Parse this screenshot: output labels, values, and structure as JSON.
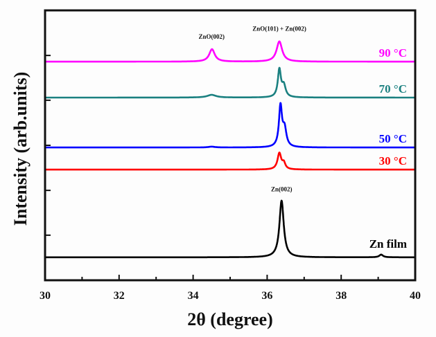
{
  "chart_data": {
    "type": "line",
    "title": "",
    "xlabel": "2θ (degree)",
    "ylabel": "Intensity (arb.units)",
    "xlim": [
      30,
      40
    ],
    "ylim": [
      0,
      100
    ],
    "xticks": [
      30,
      32,
      34,
      36,
      38,
      40
    ],
    "xminor_ticks": [
      31,
      33,
      35,
      37,
      39
    ],
    "yticks": [
      16.7,
      33.3,
      50,
      66.7,
      83.3
    ],
    "yticks_labeled": false,
    "grid": false,
    "legend": "inline labels at right end of each curve",
    "series": [
      {
        "name": "Zn film",
        "label": "Zn film",
        "color": "#000000",
        "baseline": 8.5,
        "peaks": [
          {
            "x": 36.39,
            "height": 21.0,
            "width": 0.07
          },
          {
            "x": 39.08,
            "height": 1.0,
            "width": 0.06
          }
        ]
      },
      {
        "name": "30 °C",
        "label": "30 °C",
        "color": "#ff0000",
        "baseline": 41.0,
        "peaks": [
          {
            "x": 36.33,
            "height": 6.0,
            "width": 0.06
          },
          {
            "x": 36.45,
            "height": 2.2,
            "width": 0.05
          }
        ]
      },
      {
        "name": "50 °C",
        "label": "50 °C",
        "color": "#0000ff",
        "baseline": 49.2,
        "peaks": [
          {
            "x": 36.36,
            "height": 15.0,
            "width": 0.05
          },
          {
            "x": 36.47,
            "height": 6.5,
            "width": 0.06
          },
          {
            "x": 34.5,
            "height": 0.3,
            "width": 0.1
          }
        ]
      },
      {
        "name": "70 °C",
        "label": "70 °C",
        "color": "#1a8080",
        "baseline": 67.7,
        "peaks": [
          {
            "x": 36.33,
            "height": 10.2,
            "width": 0.05
          },
          {
            "x": 36.45,
            "height": 4.2,
            "width": 0.06
          },
          {
            "x": 34.5,
            "height": 1.0,
            "width": 0.14
          }
        ]
      },
      {
        "name": "90 °C",
        "label": "90 °C",
        "color": "#ff00ff",
        "baseline": 81.0,
        "peaks": [
          {
            "x": 36.33,
            "height": 7.5,
            "width": 0.09
          },
          {
            "x": 34.51,
            "height": 4.6,
            "width": 0.09
          }
        ]
      }
    ],
    "annotations": [
      {
        "text": "ZnO(002)",
        "x": 34.5,
        "y": 89.5
      },
      {
        "text": "ZnO(101) + Zn(002)",
        "x": 36.33,
        "y": 92.5
      },
      {
        "text": "Zn(002)",
        "x": 36.39,
        "y": 33.0
      }
    ]
  }
}
